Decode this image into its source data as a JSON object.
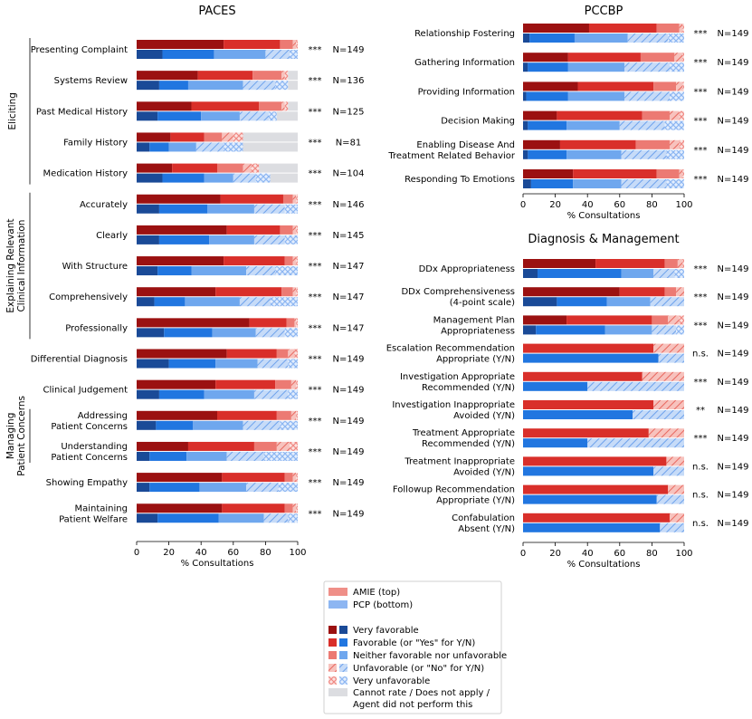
{
  "colors": {
    "red": [
      "#9b1111",
      "#d92f2a",
      "#ec7a73",
      "#f2a49f",
      "#f7c9c6"
    ],
    "blue": [
      "#1a4a97",
      "#2176e0",
      "#6fa7ee",
      "#a8c8f5",
      "#d3e4fb"
    ],
    "gray": "#dcdde1",
    "legend_red_top": "#ef8f88",
    "legend_blue_bottom": "#8db6f2"
  },
  "legend": {
    "amie": "AMIE (top)",
    "pcp": "PCP (bottom)",
    "cats": [
      "Very favorable",
      "Favorable (or \"Yes\" for Y/N)",
      "Neither favorable nor unfavorable",
      "Unfavorable (or \"No\" for Y/N)",
      "Very unfavorable"
    ],
    "na": [
      "Cannot rate / Does not apply /",
      "Agent did not perform this"
    ]
  },
  "chart_data": [
    {
      "type": "bar",
      "title": "PACES",
      "xlabel": "% Consultations",
      "xlim": [
        0,
        100
      ],
      "xticks": [
        "0",
        "20",
        "40",
        "60",
        "80",
        "100"
      ],
      "segments": [
        "very_favorable",
        "favorable",
        "neither",
        "unfavorable",
        "very_unfavorable",
        "cannot_rate"
      ],
      "groups": [
        {
          "label": "Eliciting",
          "rows": [
            0,
            4
          ]
        },
        {
          "label": "Explaining Relevant\nClinical Information",
          "rows": [
            5,
            9
          ]
        },
        {
          "label": "Managing\nPatient Concerns",
          "rows": [
            12,
            13
          ]
        }
      ],
      "rows": [
        {
          "label": "Presenting Complaint",
          "sig": "***",
          "n": "N=149",
          "amie": [
            54,
            35,
            8,
            2,
            1,
            0
          ],
          "pcp": [
            16,
            32,
            32,
            15,
            5,
            0
          ]
        },
        {
          "label": "Systems Review",
          "sig": "***",
          "n": "N=136",
          "amie": [
            38,
            34,
            18,
            2,
            2,
            6
          ],
          "pcp": [
            14,
            18,
            34,
            20,
            8,
            6
          ]
        },
        {
          "label": "Past Medical History",
          "sig": "***",
          "n": "N=125",
          "amie": [
            34,
            42,
            14,
            2,
            2,
            6
          ],
          "pcp": [
            13,
            27,
            24,
            18,
            5,
            13
          ]
        },
        {
          "label": "Family History",
          "sig": "***",
          "n": "N=81",
          "amie": [
            21,
            21,
            11,
            7,
            6,
            34
          ],
          "pcp": [
            8,
            12,
            17,
            17,
            12,
            34
          ]
        },
        {
          "label": "Medication History",
          "sig": "***",
          "n": "N=104",
          "amie": [
            22,
            28,
            16,
            5,
            5,
            24
          ],
          "pcp": [
            16,
            26,
            18,
            14,
            9,
            17
          ]
        },
        {
          "label": "Accurately",
          "sig": "***",
          "n": "N=146",
          "amie": [
            52,
            39,
            6,
            2,
            1,
            0
          ],
          "pcp": [
            14,
            30,
            29,
            19,
            8,
            0
          ]
        },
        {
          "label": "Clearly",
          "sig": "***",
          "n": "N=145",
          "amie": [
            56,
            33,
            8,
            2,
            1,
            0
          ],
          "pcp": [
            14,
            31,
            28,
            19,
            8,
            0
          ]
        },
        {
          "label": "With Structure",
          "sig": "***",
          "n": "N=147",
          "amie": [
            54,
            38,
            5,
            2,
            1,
            0
          ],
          "pcp": [
            13,
            21,
            34,
            18,
            14,
            0
          ]
        },
        {
          "label": "Comprehensively",
          "sig": "***",
          "n": "N=147",
          "amie": [
            49,
            41,
            7,
            2,
            1,
            0
          ],
          "pcp": [
            11,
            19,
            34,
            19,
            17,
            0
          ]
        },
        {
          "label": "Professionally",
          "sig": "***",
          "n": "N=147",
          "amie": [
            70,
            23,
            5,
            1,
            1,
            0
          ],
          "pcp": [
            17,
            30,
            27,
            18,
            8,
            0
          ]
        },
        {
          "label": "Differential Diagnosis",
          "sig": "***",
          "n": "N=149",
          "amie": [
            56,
            31,
            7,
            4,
            2,
            0
          ],
          "pcp": [
            20,
            29,
            26,
            19,
            6,
            0
          ]
        },
        {
          "label": "Clinical Judgement",
          "sig": "***",
          "n": "N=149",
          "amie": [
            49,
            37,
            10,
            3,
            1,
            0
          ],
          "pcp": [
            14,
            28,
            31,
            21,
            6,
            0
          ]
        },
        {
          "label": "Addressing\nPatient Concerns",
          "sig": "***",
          "n": "N=149",
          "amie": [
            50,
            37,
            9,
            3,
            1,
            0
          ],
          "pcp": [
            12,
            23,
            31,
            23,
            11,
            0
          ]
        },
        {
          "label": "Understanding\nPatient Concerns",
          "sig": "***",
          "n": "N=149",
          "amie": [
            32,
            41,
            14,
            8,
            5,
            0
          ],
          "pcp": [
            8,
            23,
            25,
            23,
            21,
            0
          ]
        },
        {
          "label": "Showing Empathy",
          "sig": "***",
          "n": "N=149",
          "amie": [
            53,
            39,
            5,
            2,
            1,
            0
          ],
          "pcp": [
            8,
            31,
            29,
            20,
            12,
            0
          ]
        },
        {
          "label": "Maintaining\nPatient Welfare",
          "sig": "***",
          "n": "N=149",
          "amie": [
            53,
            39,
            5,
            2,
            1,
            0
          ],
          "pcp": [
            13,
            38,
            28,
            15,
            6,
            0
          ]
        }
      ]
    },
    {
      "type": "bar",
      "title": "PCCBP",
      "xlabel": "% Consultations",
      "xlim": [
        0,
        100
      ],
      "xticks": [
        "0",
        "20",
        "40",
        "60",
        "80",
        "100"
      ],
      "segments": [
        "very_favorable",
        "favorable",
        "neither",
        "unfavorable",
        "very_unfavorable",
        "cannot_rate"
      ],
      "rows": [
        {
          "label": "Relationship Fostering",
          "sig": "***",
          "n": "N=149",
          "amie": [
            41,
            42,
            14,
            2,
            1,
            0
          ],
          "pcp": [
            4,
            28,
            33,
            25,
            10,
            0
          ]
        },
        {
          "label": "Gathering Information",
          "sig": "***",
          "n": "N=149",
          "amie": [
            28,
            45,
            21,
            5,
            1,
            0
          ],
          "pcp": [
            3,
            25,
            35,
            28,
            9,
            0
          ]
        },
        {
          "label": "Providing Information",
          "sig": "***",
          "n": "N=149",
          "amie": [
            34,
            47,
            14,
            4,
            1,
            0
          ],
          "pcp": [
            2,
            26,
            35,
            28,
            9,
            0
          ]
        },
        {
          "label": "Decision Making",
          "sig": "***",
          "n": "N=149",
          "amie": [
            21,
            53,
            17,
            6,
            3,
            0
          ],
          "pcp": [
            3,
            24,
            33,
            28,
            12,
            0
          ]
        },
        {
          "label": "Enabling Disease And\nTreatment Related Behavior",
          "sig": "***",
          "n": "N=149",
          "amie": [
            23,
            47,
            21,
            6,
            3,
            0
          ],
          "pcp": [
            3,
            24,
            34,
            28,
            11,
            0
          ]
        },
        {
          "label": "Responding To Emotions",
          "sig": "***",
          "n": "N=149",
          "amie": [
            31,
            52,
            14,
            2,
            1,
            0
          ],
          "pcp": [
            5,
            26,
            30,
            28,
            11,
            0
          ]
        }
      ]
    },
    {
      "type": "bar",
      "title": "Diagnosis & Management",
      "xlabel": "% Consultations",
      "xlim": [
        0,
        100
      ],
      "xticks": [
        "0",
        "20",
        "40",
        "60",
        "80",
        "100"
      ],
      "segments": [
        "very_favorable",
        "favorable",
        "neither",
        "unfavorable",
        "very_unfavorable",
        "cannot_rate"
      ],
      "rows": [
        {
          "label": "DDx Appropriateness",
          "sig": "***",
          "n": "N=149",
          "amie": [
            45,
            43,
            8,
            3,
            1,
            0
          ],
          "pcp": [
            9,
            52,
            20,
            13,
            6,
            0
          ]
        },
        {
          "label": "DDx Comprehensiveness\n(4-point scale)",
          "sig": "***",
          "n": "N=149",
          "amie": [
            60,
            28,
            7,
            5,
            0,
            0
          ],
          "pcp": [
            21,
            31,
            27,
            21,
            0,
            0
          ]
        },
        {
          "label": "Management Plan\nAppropriateness",
          "sig": "***",
          "n": "N=149",
          "amie": [
            27,
            53,
            10,
            7,
            3,
            0
          ],
          "pcp": [
            8,
            43,
            29,
            15,
            5,
            0
          ]
        },
        {
          "label": "Escalation Recommendation\nAppropriate (Y/N)",
          "sig": "n.s.",
          "n": "N=149",
          "amie": [
            0,
            81,
            0,
            19,
            0,
            0
          ],
          "pcp": [
            0,
            84,
            0,
            16,
            0,
            0
          ]
        },
        {
          "label": "Investigation Appropriate\nRecommended (Y/N)",
          "sig": "***",
          "n": "N=149",
          "amie": [
            0,
            74,
            0,
            26,
            0,
            0
          ],
          "pcp": [
            0,
            40,
            0,
            60,
            0,
            0
          ]
        },
        {
          "label": "Investigation Inappropriate\nAvoided (Y/N)",
          "sig": "**",
          "n": "N=149",
          "amie": [
            0,
            81,
            0,
            19,
            0,
            0
          ],
          "pcp": [
            0,
            68,
            0,
            32,
            0,
            0
          ]
        },
        {
          "label": "Treatment Appropriate\nRecommended (Y/N)",
          "sig": "***",
          "n": "N=149",
          "amie": [
            0,
            78,
            0,
            22,
            0,
            0
          ],
          "pcp": [
            0,
            40,
            0,
            60,
            0,
            0
          ]
        },
        {
          "label": "Treatment Inappropriate\nAvoided (Y/N)",
          "sig": "n.s.",
          "n": "N=149",
          "amie": [
            0,
            89,
            0,
            11,
            0,
            0
          ],
          "pcp": [
            0,
            81,
            0,
            19,
            0,
            0
          ]
        },
        {
          "label": "Followup Recommendation\nAppropriate (Y/N)",
          "sig": "n.s.",
          "n": "N=149",
          "amie": [
            0,
            90,
            0,
            10,
            0,
            0
          ],
          "pcp": [
            0,
            83,
            0,
            17,
            0,
            0
          ]
        },
        {
          "label": "Confabulation\nAbsent (Y/N)",
          "sig": "n.s.",
          "n": "N=149",
          "amie": [
            0,
            91,
            0,
            9,
            0,
            0
          ],
          "pcp": [
            0,
            85,
            0,
            15,
            0,
            0
          ]
        }
      ]
    }
  ]
}
